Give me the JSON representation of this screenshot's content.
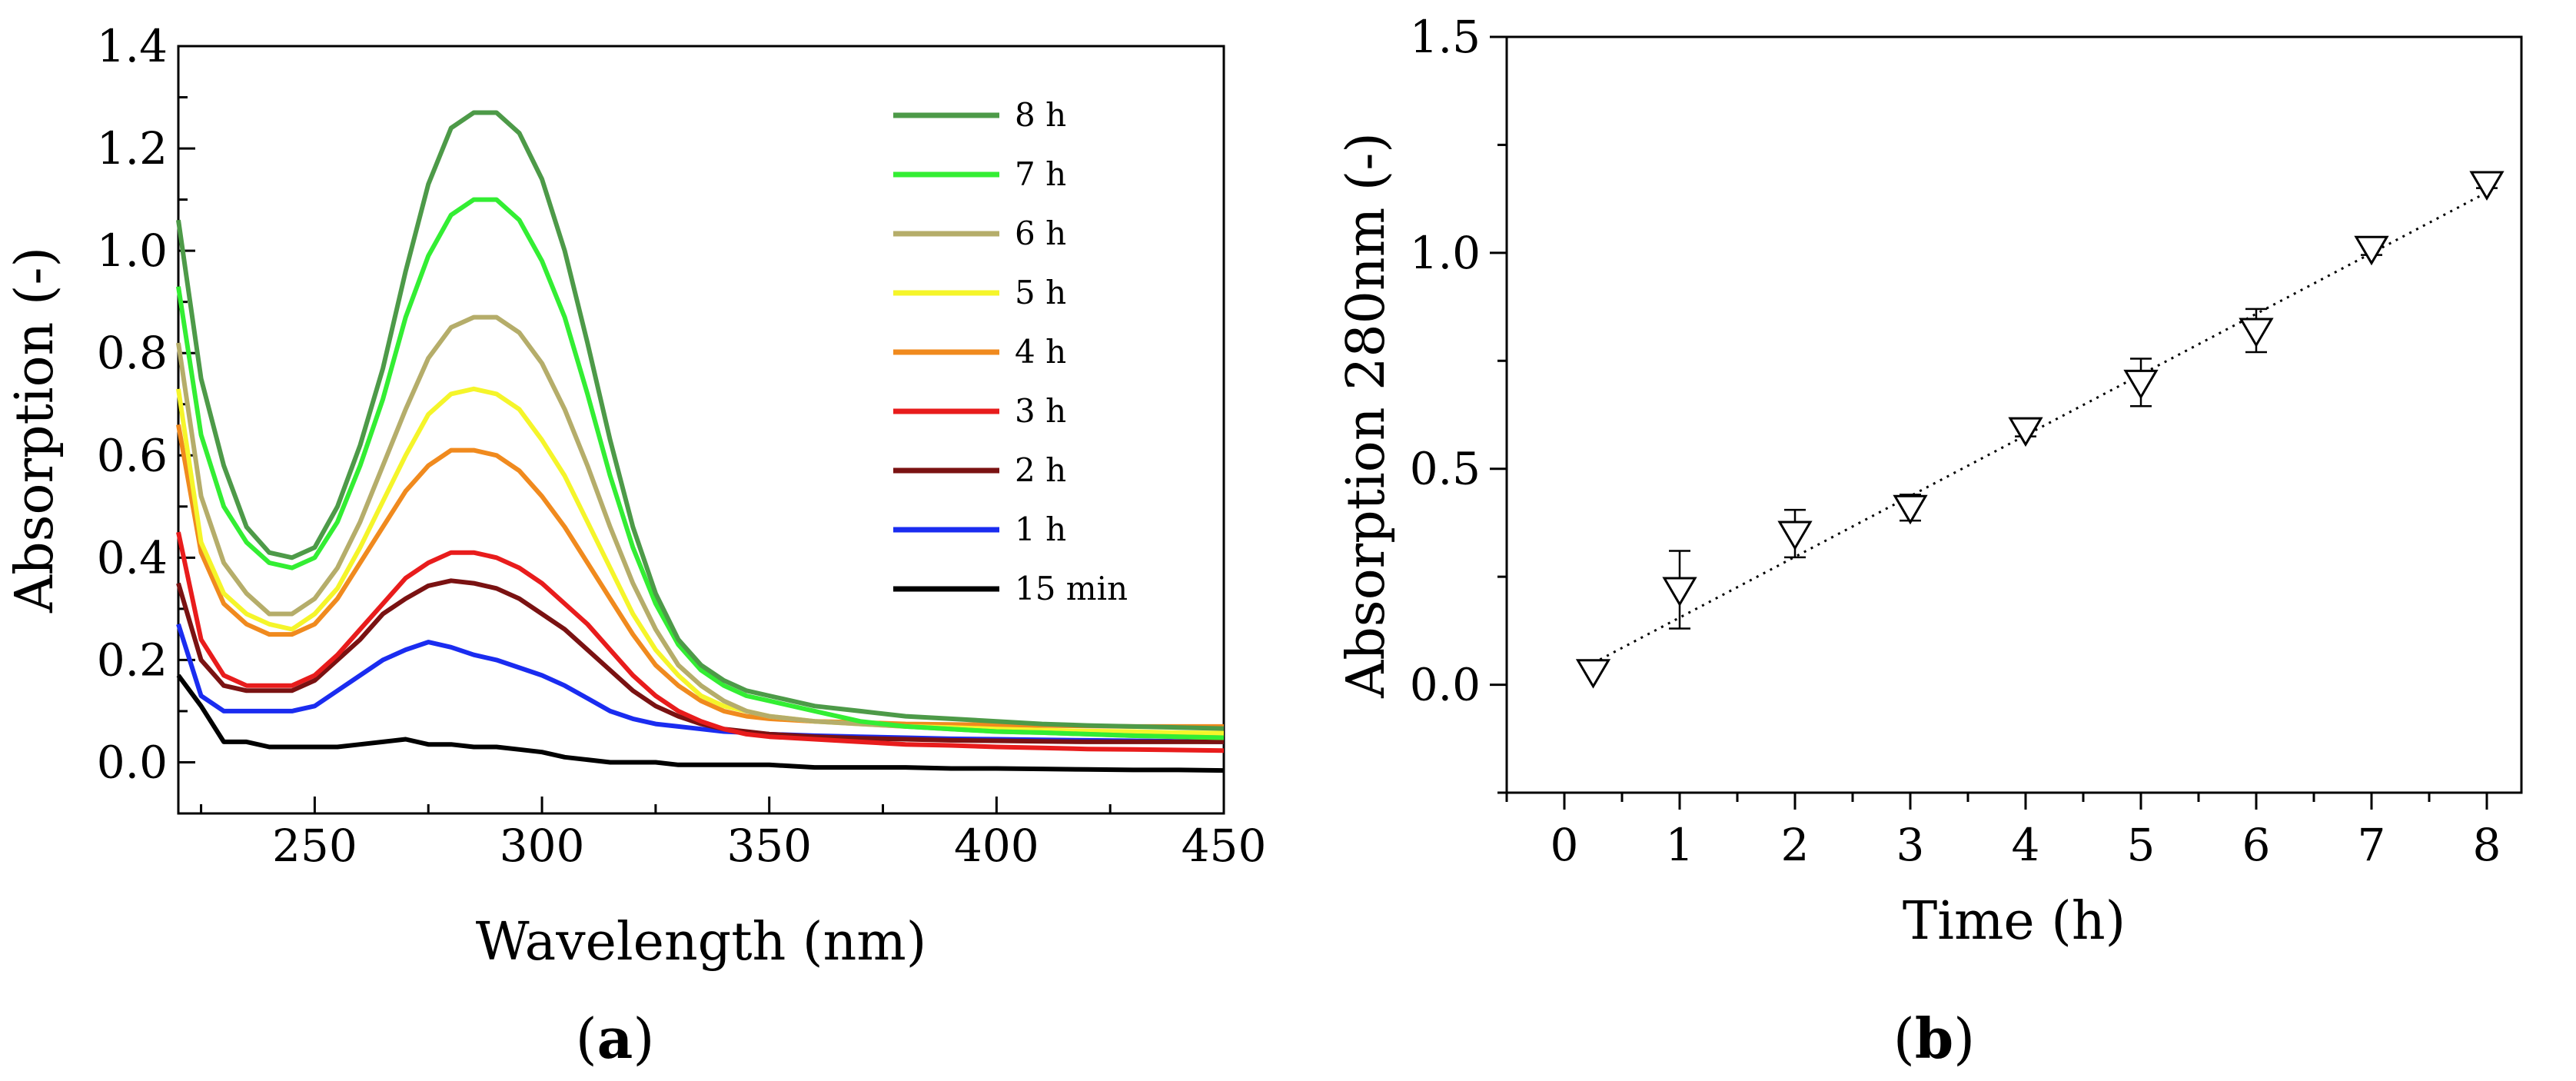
{
  "chart_data": [
    {
      "type": "line",
      "panel_label": "a",
      "title": "",
      "xlabel": "Wavelength (nm)",
      "ylabel": "Absorption (-)",
      "xlim": [
        220,
        450
      ],
      "ylim": [
        -0.1,
        1.4
      ],
      "xticks": [
        250,
        300,
        350,
        400,
        450
      ],
      "yticks": [
        0.0,
        0.2,
        0.4,
        0.6,
        0.8,
        1.0,
        1.2,
        1.4
      ],
      "xtick_labels": [
        "250",
        "300",
        "350",
        "400",
        "450"
      ],
      "ytick_labels": [
        "0.0",
        "0.2",
        "0.4",
        "0.6",
        "0.8",
        "1.0",
        "1.2",
        "1.4"
      ],
      "legend_position": "top-right",
      "x": [
        220,
        225,
        230,
        235,
        240,
        245,
        250,
        255,
        260,
        265,
        270,
        275,
        280,
        285,
        290,
        295,
        300,
        305,
        310,
        315,
        320,
        325,
        330,
        335,
        340,
        345,
        350,
        360,
        370,
        380,
        390,
        400,
        410,
        420,
        430,
        440,
        450
      ],
      "series": [
        {
          "name": "8 h",
          "color": "#4d9a48",
          "values": [
            1.06,
            0.75,
            0.58,
            0.46,
            0.41,
            0.4,
            0.42,
            0.5,
            0.62,
            0.77,
            0.96,
            1.13,
            1.24,
            1.27,
            1.27,
            1.23,
            1.14,
            1.0,
            0.82,
            0.63,
            0.46,
            0.33,
            0.24,
            0.19,
            0.16,
            0.14,
            0.13,
            0.11,
            0.1,
            0.09,
            0.085,
            0.08,
            0.075,
            0.072,
            0.07,
            0.068,
            0.066
          ]
        },
        {
          "name": "7 h",
          "color": "#33ee33",
          "values": [
            0.93,
            0.64,
            0.5,
            0.43,
            0.39,
            0.38,
            0.4,
            0.47,
            0.58,
            0.71,
            0.87,
            0.99,
            1.07,
            1.1,
            1.1,
            1.06,
            0.98,
            0.87,
            0.72,
            0.56,
            0.42,
            0.31,
            0.23,
            0.18,
            0.15,
            0.13,
            0.12,
            0.1,
            0.08,
            0.07,
            0.065,
            0.06,
            0.058,
            0.055,
            0.052,
            0.05,
            0.048
          ]
        },
        {
          "name": "6 h",
          "color": "#b5ad6a",
          "values": [
            0.82,
            0.52,
            0.39,
            0.33,
            0.29,
            0.29,
            0.32,
            0.38,
            0.47,
            0.58,
            0.69,
            0.79,
            0.85,
            0.87,
            0.87,
            0.84,
            0.78,
            0.69,
            0.58,
            0.46,
            0.35,
            0.26,
            0.19,
            0.15,
            0.12,
            0.1,
            0.09,
            0.08,
            0.075,
            0.07,
            0.065,
            0.06,
            0.058,
            0.055,
            0.052,
            0.05,
            0.048
          ]
        },
        {
          "name": "5 h",
          "color": "#f5f52a",
          "values": [
            0.73,
            0.43,
            0.33,
            0.29,
            0.27,
            0.26,
            0.29,
            0.34,
            0.42,
            0.51,
            0.6,
            0.68,
            0.72,
            0.73,
            0.72,
            0.69,
            0.63,
            0.56,
            0.47,
            0.38,
            0.29,
            0.22,
            0.17,
            0.13,
            0.11,
            0.1,
            0.09,
            0.08,
            0.075,
            0.07,
            0.068,
            0.065,
            0.063,
            0.061,
            0.06,
            0.058,
            0.057
          ]
        },
        {
          "name": "4 h",
          "color": "#f08a1e",
          "values": [
            0.66,
            0.41,
            0.31,
            0.27,
            0.25,
            0.25,
            0.27,
            0.32,
            0.39,
            0.46,
            0.53,
            0.58,
            0.61,
            0.61,
            0.6,
            0.57,
            0.52,
            0.46,
            0.39,
            0.32,
            0.25,
            0.19,
            0.15,
            0.12,
            0.1,
            0.09,
            0.085,
            0.08,
            0.078,
            0.075,
            0.074,
            0.073,
            0.072,
            0.071,
            0.07,
            0.07,
            0.07
          ]
        },
        {
          "name": "3 h",
          "color": "#e81c1c",
          "values": [
            0.45,
            0.24,
            0.17,
            0.15,
            0.15,
            0.15,
            0.17,
            0.21,
            0.26,
            0.31,
            0.36,
            0.39,
            0.41,
            0.41,
            0.4,
            0.38,
            0.35,
            0.31,
            0.27,
            0.22,
            0.17,
            0.13,
            0.1,
            0.08,
            0.065,
            0.055,
            0.05,
            0.045,
            0.04,
            0.035,
            0.033,
            0.03,
            0.028,
            0.026,
            0.025,
            0.024,
            0.023
          ]
        },
        {
          "name": "2 h",
          "color": "#7a1212",
          "values": [
            0.35,
            0.2,
            0.15,
            0.14,
            0.14,
            0.14,
            0.16,
            0.2,
            0.24,
            0.29,
            0.32,
            0.345,
            0.355,
            0.35,
            0.34,
            0.32,
            0.29,
            0.26,
            0.22,
            0.18,
            0.14,
            0.11,
            0.09,
            0.075,
            0.065,
            0.06,
            0.055,
            0.05,
            0.047,
            0.045,
            0.043,
            0.042,
            0.041,
            0.04,
            0.04,
            0.04,
            0.04
          ]
        },
        {
          "name": "1 h",
          "color": "#1a2cf0",
          "values": [
            0.27,
            0.13,
            0.1,
            0.1,
            0.1,
            0.1,
            0.11,
            0.14,
            0.17,
            0.2,
            0.22,
            0.235,
            0.225,
            0.21,
            0.2,
            0.185,
            0.17,
            0.15,
            0.125,
            0.1,
            0.085,
            0.075,
            0.07,
            0.065,
            0.06,
            0.058,
            0.055,
            0.052,
            0.05,
            0.048,
            0.046,
            0.045,
            0.044,
            0.043,
            0.042,
            0.041,
            0.04
          ]
        },
        {
          "name": "15 min",
          "color": "#000000",
          "values": [
            0.17,
            0.11,
            0.04,
            0.04,
            0.03,
            0.03,
            0.03,
            0.03,
            0.035,
            0.04,
            0.045,
            0.035,
            0.035,
            0.03,
            0.03,
            0.025,
            0.02,
            0.01,
            0.005,
            0.0,
            0.0,
            0.0,
            -0.005,
            -0.005,
            -0.005,
            -0.005,
            -0.005,
            -0.01,
            -0.01,
            -0.01,
            -0.012,
            -0.012,
            -0.013,
            -0.014,
            -0.015,
            -0.015,
            -0.016
          ]
        }
      ]
    },
    {
      "type": "scatter",
      "panel_label": "b",
      "title": "",
      "xlabel": "Time (h)",
      "ylabel": "Absorption 280nm (-)",
      "xlim": [
        -0.5,
        8.3
      ],
      "ylim": [
        -0.25,
        1.5
      ],
      "xticks": [
        0,
        1,
        2,
        3,
        4,
        5,
        6,
        7,
        8
      ],
      "yticks": [
        0.0,
        0.5,
        1.0,
        1.5
      ],
      "xtick_labels": [
        "0",
        "1",
        "2",
        "3",
        "4",
        "5",
        "6",
        "7",
        "8"
      ],
      "ytick_labels": [
        "0.0",
        "0.5",
        "1.0",
        "1.5"
      ],
      "marker": "downward-triangle",
      "trendline": {
        "style": "dotted",
        "x": [
          0.25,
          8
        ],
        "y": [
          0.05,
          1.14
        ]
      },
      "points": [
        {
          "x": 0.25,
          "y": 0.03,
          "err": 0.0
        },
        {
          "x": 1,
          "y": 0.22,
          "err": 0.09
        },
        {
          "x": 2,
          "y": 0.35,
          "err": 0.055
        },
        {
          "x": 3,
          "y": 0.41,
          "err": 0.03
        },
        {
          "x": 4,
          "y": 0.59,
          "err": 0.015
        },
        {
          "x": 5,
          "y": 0.7,
          "err": 0.055
        },
        {
          "x": 6,
          "y": 0.82,
          "err": 0.05
        },
        {
          "x": 7,
          "y": 1.01,
          "err": 0.015
        },
        {
          "x": 8,
          "y": 1.16,
          "err": 0.01
        }
      ]
    }
  ]
}
